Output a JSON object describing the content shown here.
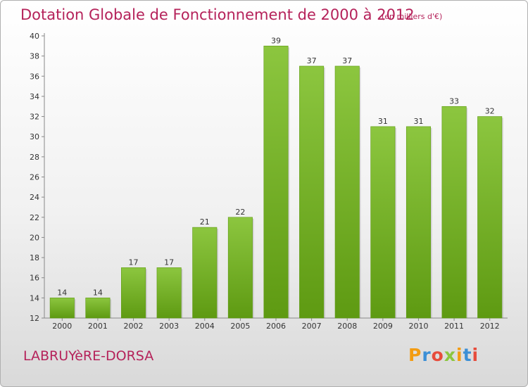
{
  "header": {
    "title": "Dotation Globale de Fonctionnement de 2000 à 2012",
    "subtitle": "(en milliers d'€)"
  },
  "footer": {
    "commune": "LABRUYèRE-DORSA",
    "logo_text": "Proxiti",
    "logo_colors": [
      "#f39c12",
      "#3b8fd6",
      "#e74c3c",
      "#8cc63f",
      "#f39c12",
      "#3b8fd6",
      "#e74c3c"
    ]
  },
  "chart_data": {
    "type": "bar",
    "categories": [
      "2000",
      "2001",
      "2002",
      "2003",
      "2004",
      "2005",
      "2006",
      "2007",
      "2008",
      "2009",
      "2010",
      "2011",
      "2012"
    ],
    "values": [
      14,
      14,
      17,
      17,
      21,
      22,
      39,
      37,
      37,
      31,
      31,
      33,
      32
    ],
    "title": "Dotation Globale de Fonctionnement de 2000 à 2012",
    "subtitle": "(en milliers d'€)",
    "xlabel": "",
    "ylabel": "",
    "ylim": [
      12,
      40
    ],
    "yticks": [
      12,
      14,
      16,
      18,
      20,
      22,
      24,
      26,
      28,
      30,
      32,
      34,
      36,
      38,
      40
    ],
    "bar_color": "#8cc63f",
    "bar_color_dark": "#5e9a12",
    "grid": false,
    "legend": "none"
  }
}
